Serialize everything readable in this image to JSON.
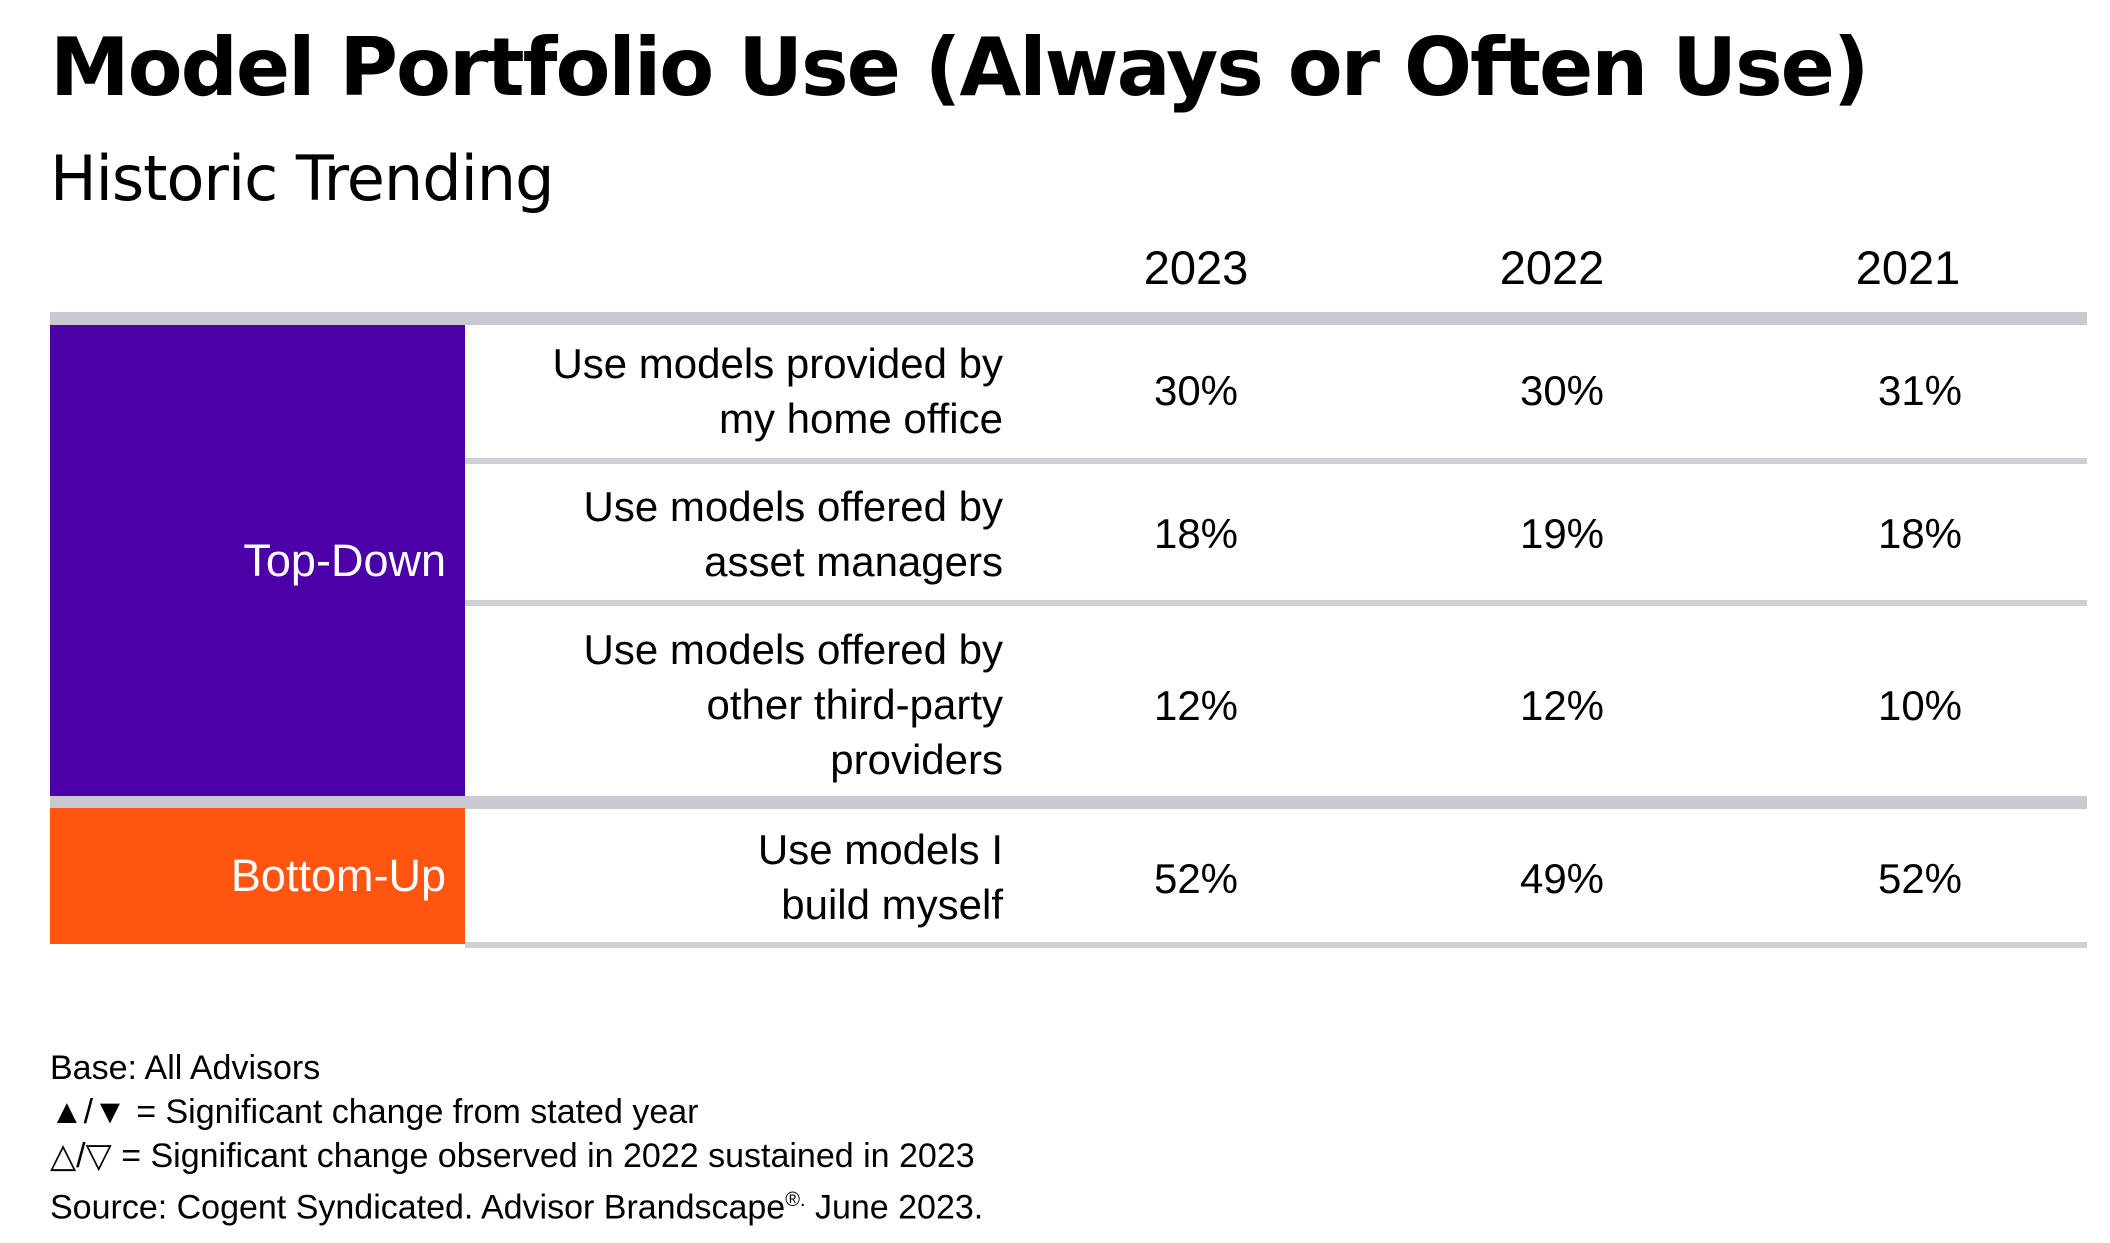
{
  "title": "Model Portfolio Use (Always or Often Use)",
  "subtitle": "Historic Trending",
  "years": [
    "2023",
    "2022",
    "2021"
  ],
  "groups": {
    "top_down": {
      "label": "Top-Down",
      "color": "#4b00a8"
    },
    "bottom_up": {
      "label": "Bottom-Up",
      "color": "#ff5511"
    }
  },
  "rows": [
    {
      "label_lines": [
        "Use models provided by",
        "my home office"
      ],
      "values": [
        "30%",
        "30%",
        "31%"
      ]
    },
    {
      "label_lines": [
        "Use models offered by",
        "asset managers"
      ],
      "values": [
        "18%",
        "19%",
        "18%"
      ]
    },
    {
      "label_lines": [
        "Use models offered by",
        "other third-party",
        "providers"
      ],
      "values": [
        "12%",
        "12%",
        "10%"
      ]
    },
    {
      "label_lines": [
        "Use models I",
        "build myself"
      ],
      "values": [
        "52%",
        "49%",
        "52%"
      ]
    }
  ],
  "notes": {
    "base": "Base: All Advisors",
    "legend_solid": "▲/▼ = Significant change from stated year",
    "legend_hollow": "△/▽ = Significant change observed in 2022 sustained in 2023",
    "source_prefix": "Source: Cogent Syndicated. Advisor Brandscape",
    "source_mark": "®.",
    "source_suffix": " June 2023."
  }
}
